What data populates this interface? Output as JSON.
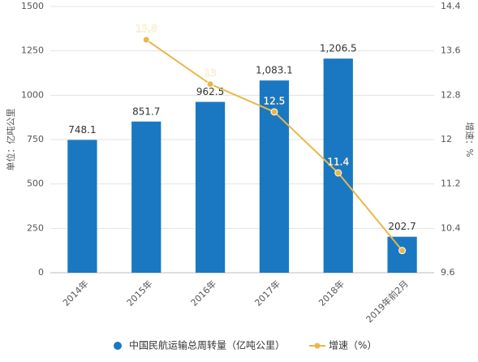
{
  "chart_data": {
    "type": "bar",
    "categories": [
      "2014年",
      "2015年",
      "2016年",
      "2017年",
      "2018年",
      "2019年前2月"
    ],
    "series": [
      {
        "name": "中国民航运输总周转量（亿吨公里）",
        "type": "bar",
        "color": "#1a78c2",
        "values": [
          748.1,
          851.7,
          962.5,
          1083.1,
          1206.5,
          202.7
        ],
        "value_labels": [
          "748.1",
          "851.7",
          "962.5",
          "1,083.1",
          "1,206.5",
          "202.7"
        ]
      },
      {
        "name": "增速（%）",
        "type": "line",
        "axis": "y2",
        "color": "#e8b84a",
        "values": [
          null,
          13.8,
          13,
          12.5,
          11.4,
          10.0
        ],
        "value_labels": [
          null,
          "13.8",
          "13",
          "12.5",
          "11.4",
          null
        ]
      }
    ],
    "ylabel": "单位：亿吨公里",
    "y2label": "增速：%",
    "ylim": [
      0,
      1500
    ],
    "yticks": [
      0,
      250,
      500,
      750,
      1000,
      1250,
      1500
    ],
    "y2lim": [
      9.6,
      14.4
    ],
    "y2ticks": [
      9.6,
      10.4,
      11.2,
      12,
      12.8,
      13.6,
      14.4
    ],
    "grid": true,
    "legend": "bottom"
  }
}
